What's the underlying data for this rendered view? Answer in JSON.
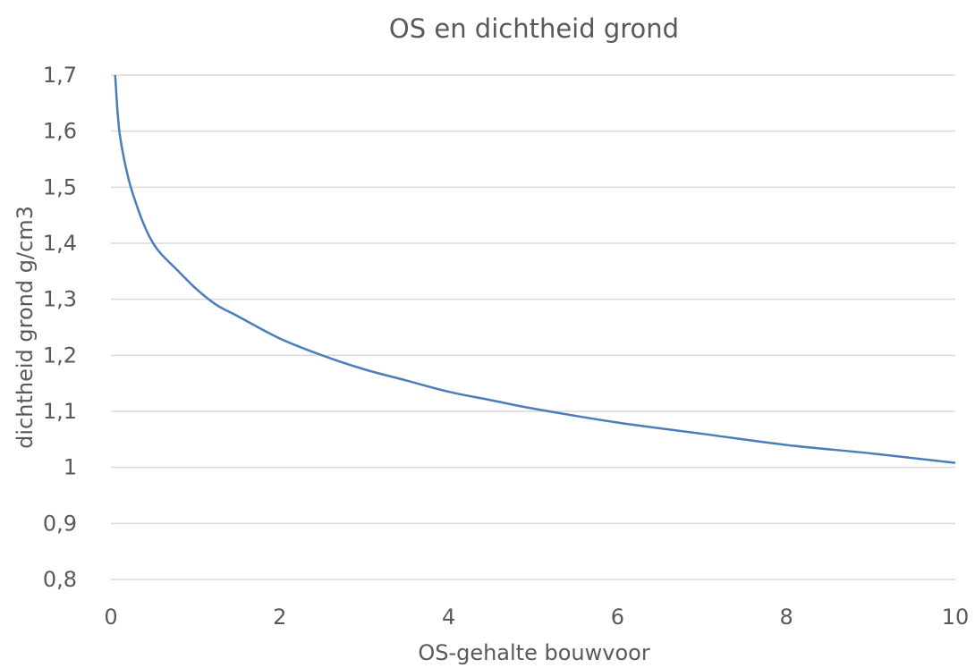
{
  "chart_data": {
    "type": "line",
    "title": "OS en dichtheid grond",
    "xlabel": "OS-gehalte bouwvoor",
    "ylabel": "dichtheid grond g/cm3",
    "xlim": [
      0,
      10
    ],
    "ylim": [
      0.8,
      1.7
    ],
    "x_ticks": [
      "0",
      "2",
      "4",
      "6",
      "8",
      "10"
    ],
    "y_ticks": [
      "0,8",
      "0,9",
      "1",
      "1,1",
      "1,2",
      "1,3",
      "1,4",
      "1,5",
      "1,6",
      "1,7"
    ],
    "grid": "horizontal",
    "legend": "none",
    "series": [
      {
        "color": "#4a7ebb",
        "x": [
          0.05,
          0.1,
          0.2,
          0.3,
          0.4,
          0.5,
          0.6,
          0.8,
          1.0,
          1.25,
          1.5,
          2.0,
          2.5,
          3.0,
          3.5,
          4.0,
          4.5,
          5.0,
          6.0,
          7.0,
          8.0,
          9.0,
          10.0
        ],
        "y": [
          1.7,
          1.6,
          1.52,
          1.47,
          1.43,
          1.4,
          1.38,
          1.35,
          1.32,
          1.29,
          1.27,
          1.23,
          1.2,
          1.175,
          1.155,
          1.135,
          1.12,
          1.105,
          1.08,
          1.06,
          1.04,
          1.025,
          1.008
        ]
      }
    ]
  }
}
